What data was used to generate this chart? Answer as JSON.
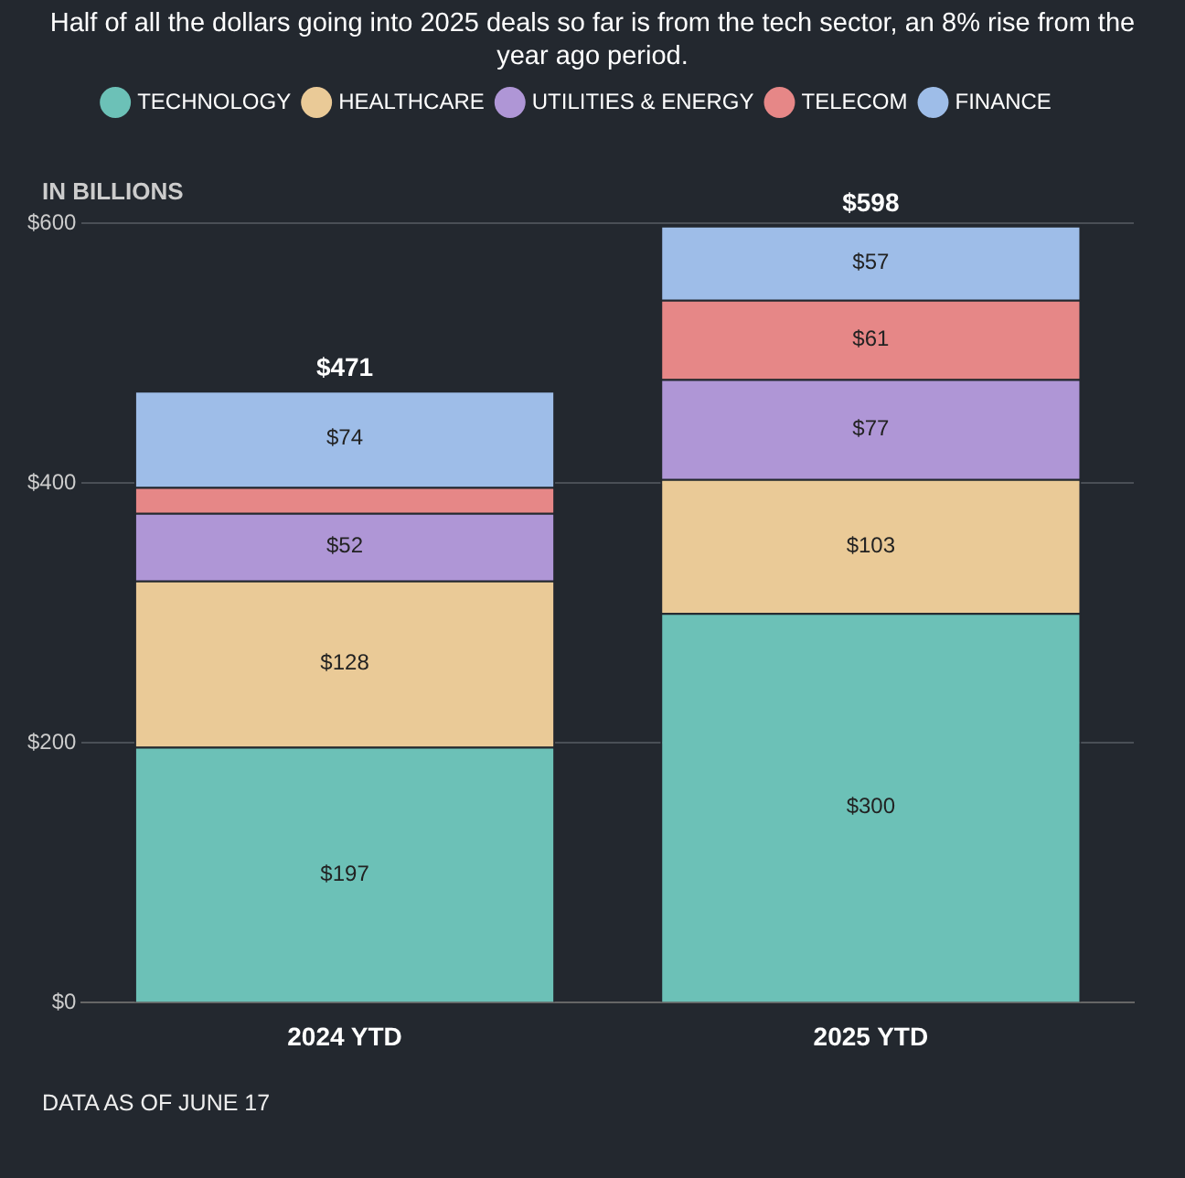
{
  "chart_data": {
    "type": "bar",
    "title": "Half of all the dollars going into 2025 deals so far is from the tech sector, an 8% rise from the year ago period.",
    "ylabel": "IN BILLIONS",
    "annotations": [
      "DATA AS OF JUNE 17"
    ],
    "categories": [
      "2024 YTD",
      "2025 YTD"
    ],
    "stacked": true,
    "series": [
      {
        "name": "TECHNOLOGY",
        "color": "#6cc1b7",
        "values": [
          197,
          300
        ],
        "value_labels": [
          "$197",
          "$300"
        ]
      },
      {
        "name": "HEALTHCARE",
        "color": "#eaca97",
        "values": [
          128,
          103
        ],
        "value_labels": [
          "$128",
          "$103"
        ]
      },
      {
        "name": "UTILITIES & ENERGY",
        "color": "#af96d6",
        "values": [
          52,
          77
        ],
        "value_labels": [
          "$52",
          "$77"
        ]
      },
      {
        "name": "TELECOM",
        "color": "#e68787",
        "values": [
          20,
          61
        ],
        "value_labels": [
          null,
          "$61"
        ]
      },
      {
        "name": "FINANCE",
        "color": "#9ebde8",
        "values": [
          74,
          57
        ],
        "value_labels": [
          "$74",
          "$57"
        ]
      }
    ],
    "totals": [
      "$471",
      "$598"
    ],
    "ylim": [
      0,
      600
    ],
    "yticks": [
      {
        "value": 0,
        "label": "$0"
      },
      {
        "value": 200,
        "label": "$200"
      },
      {
        "value": 400,
        "label": "$400"
      },
      {
        "value": 600,
        "label": "$600"
      }
    ],
    "grid": "y",
    "legend": "top"
  }
}
